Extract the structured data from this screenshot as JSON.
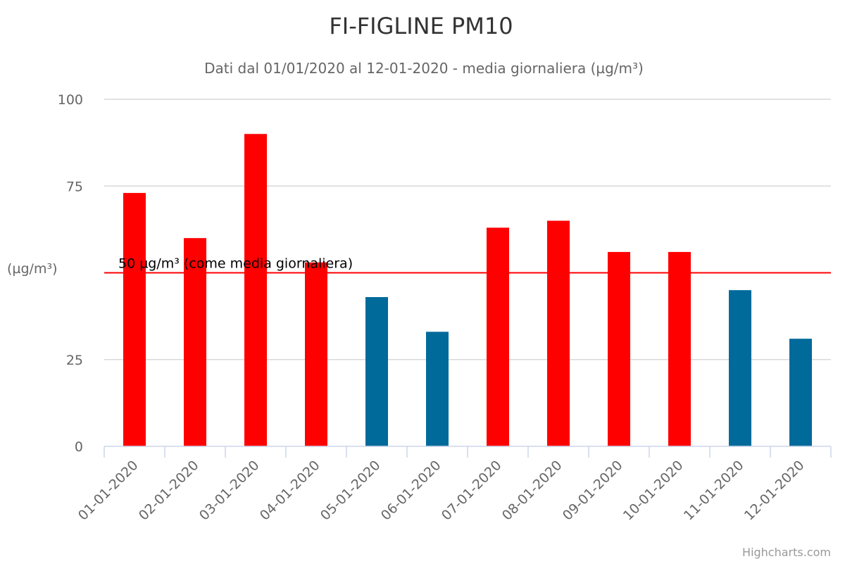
{
  "chart_data": {
    "type": "bar",
    "title": "FI-FIGLINE PM10",
    "subtitle": "Dati dal 01/01/2020 al 12-01-2020 - media giornaliera (µg/m³)",
    "ylabel": "(µg/m³)",
    "xlabel": "",
    "categories": [
      "01-01-2020",
      "02-01-2020",
      "03-01-2020",
      "04-01-2020",
      "05-01-2020",
      "06-01-2020",
      "07-01-2020",
      "08-01-2020",
      "09-01-2020",
      "10-01-2020",
      "11-01-2020",
      "12-01-2020"
    ],
    "values": [
      73,
      60,
      90,
      53,
      43,
      33,
      63,
      65,
      56,
      56,
      45,
      31
    ],
    "ylim": [
      0,
      100
    ],
    "yticks": [
      0,
      25,
      75,
      100
    ],
    "grid": true,
    "threshold": {
      "value": 50,
      "label": "50 µg/m³ (come media giornaliera)",
      "color": "#ff0000"
    },
    "colors": {
      "above_threshold": "#ff0000",
      "below_threshold": "#006a9b"
    }
  },
  "credits": "Highcharts.com"
}
